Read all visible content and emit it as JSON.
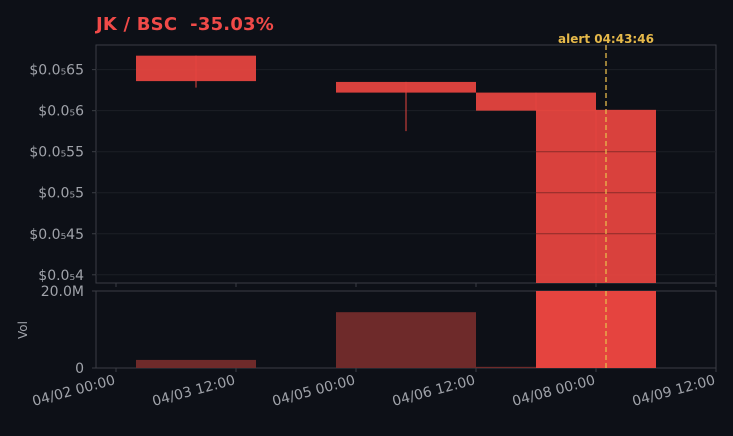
{
  "title": "JK / BSC  -35.03%",
  "colors": {
    "background": "#0d1017",
    "down": "#e5443f",
    "volume": "#6e2a2a",
    "alert": "#e6b94a",
    "title": "#f04a48",
    "axis": "#3a3d44",
    "tick_text": "#a0a3aa"
  },
  "chart_data": [
    {
      "type": "candlestick",
      "title": "JK / BSC  -35.03%",
      "ylim": [
        3.9e-06,
        6.8e-06
      ],
      "y_ticks": [
        {
          "value": 4e-06,
          "label": "$0.0₅4"
        },
        {
          "value": 4.5e-06,
          "label": "$0.0₅45"
        },
        {
          "value": 5e-06,
          "label": "$0.0₅5"
        },
        {
          "value": 5.5e-06,
          "label": "$0.0₅55"
        },
        {
          "value": 6e-06,
          "label": "$0.0₅6"
        },
        {
          "value": 6.5e-06,
          "label": "$0.0₅65"
        }
      ],
      "x_ticks": [
        "04/02 00:00",
        "04/03 12:00",
        "04/05 00:00",
        "04/06 12:00",
        "04/08 00:00",
        "04/09 12:00"
      ],
      "xlim": [
        "2024-04-01 18:00",
        "2024-04-09 12:00"
      ],
      "candles": [
        {
          "x_start": "2024-04-02 06:00",
          "x_end": "2024-04-03 18:00",
          "open": 6.67e-06,
          "high": 6.67e-06,
          "low": 6.28e-06,
          "close": 6.36e-06
        },
        {
          "x_start": "2024-04-04 18:00",
          "x_end": "2024-04-06 12:00",
          "open": 6.35e-06,
          "high": 6.35e-06,
          "low": 5.75e-06,
          "close": 6.22e-06
        },
        {
          "x_start": "2024-04-06 12:00",
          "x_end": "2024-04-08 00:00",
          "open": 6.22e-06,
          "high": 6.22e-06,
          "low": 6e-06,
          "close": 6e-06
        },
        {
          "x_start": "2024-04-07 06:00",
          "x_end": "2024-04-08 18:00",
          "open": 6.01e-06,
          "high": 6.01e-06,
          "low": 3.9e-06,
          "close": 3.9e-06
        }
      ],
      "alert": {
        "x": "2024-04-08 03:00",
        "label": "alert 04:43:46"
      }
    },
    {
      "type": "bar",
      "ylabel": "Vol",
      "ylim": [
        0,
        20000000
      ],
      "y_ticks": [
        {
          "value": 0,
          "label": "0"
        },
        {
          "value": 20000000,
          "label": "20.0M"
        }
      ],
      "bars": [
        {
          "x_start": "2024-04-02 06:00",
          "x_end": "2024-04-03 18:00",
          "value": 2100000
        },
        {
          "x_start": "2024-04-04 18:00",
          "x_end": "2024-04-06 12:00",
          "value": 14500000
        },
        {
          "x_start": "2024-04-06 12:00",
          "x_end": "2024-04-08 00:00",
          "value": 300000
        },
        {
          "x_start": "2024-04-07 06:00",
          "x_end": "2024-04-08 18:00",
          "value": 20000000
        }
      ]
    }
  ]
}
